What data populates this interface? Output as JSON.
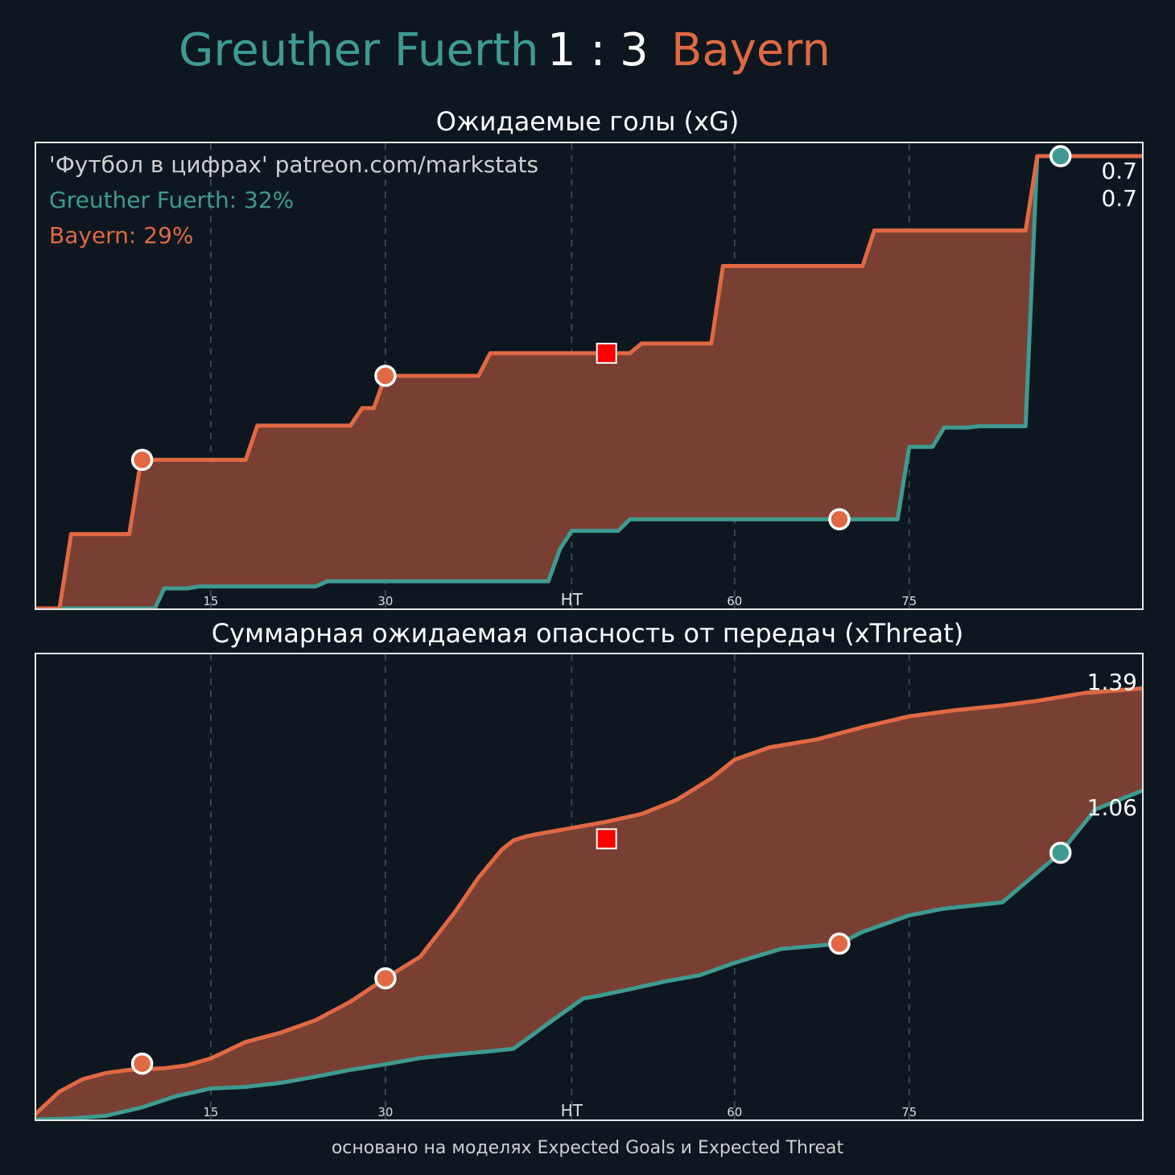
{
  "header": {
    "home_team": "Greuther Fuerth",
    "score": "1 : 3",
    "away_team": "Bayern",
    "home_color": "#3f9b91",
    "away_color": "#e06943"
  },
  "footer": "основано на моделях Expected Goals и Expected Threat",
  "chart_data": [
    {
      "type": "line",
      "title": "Ожидаемые голы (xG)",
      "watermark": "'Футбол в цифрах' patreon.com/markstats",
      "stats": [
        "Greuther Fuerth: 32%",
        "Bayern: 29%"
      ],
      "xlim": [
        0,
        95
      ],
      "ylim": [
        0,
        0.72
      ],
      "xticks": [
        {
          "value": 15,
          "label": "15"
        },
        {
          "value": 30,
          "label": "30"
        },
        {
          "value": 46,
          "label": "HT"
        },
        {
          "value": 60,
          "label": "60"
        },
        {
          "value": 75,
          "label": "75"
        }
      ],
      "grid_x": true,
      "end_labels": [
        "0.7",
        "0.7"
      ],
      "series": [
        {
          "name": "Greuther Fuerth",
          "color": "#3f9b91",
          "x": [
            0,
            10.2,
            11,
            13,
            14,
            24,
            25,
            44,
            45,
            46,
            50,
            51,
            74,
            75,
            77,
            78,
            80,
            81,
            85,
            86,
            95
          ],
          "y": [
            0,
            0,
            0.031,
            0.031,
            0.034,
            0.034,
            0.042,
            0.042,
            0.092,
            0.12,
            0.12,
            0.138,
            0.138,
            0.25,
            0.25,
            0.28,
            0.28,
            0.282,
            0.282,
            0.7,
            0.7
          ]
        },
        {
          "name": "Bayern",
          "color": "#e06943",
          "x": [
            0,
            2,
            3,
            8,
            9,
            9.1,
            18,
            19,
            27,
            28,
            28.5,
            29,
            30,
            38,
            39,
            51,
            52,
            58,
            59,
            71,
            72,
            85,
            86,
            95
          ],
          "y": [
            0,
            0,
            0.115,
            0.115,
            0.23,
            0.23,
            0.23,
            0.283,
            0.283,
            0.31,
            0.31,
            0.31,
            0.36,
            0.36,
            0.395,
            0.395,
            0.41,
            0.41,
            0.53,
            0.53,
            0.585,
            0.585,
            0.7,
            0.7
          ]
        }
      ],
      "markers": [
        {
          "x": 9.1,
          "y": 0.23,
          "kind": "circle",
          "color": "#e06943"
        },
        {
          "x": 30,
          "y": 0.36,
          "kind": "circle",
          "color": "#e06943"
        },
        {
          "x": 49,
          "y": 0.395,
          "kind": "square",
          "color": "#ff0000"
        },
        {
          "x": 69,
          "y": 0.138,
          "kind": "circle",
          "color": "#e06943"
        },
        {
          "x": 88,
          "y": 0.7,
          "kind": "circle",
          "color": "#3f9b91"
        }
      ]
    },
    {
      "type": "line",
      "title": "Суммарная ожидаемая опасность от передач (xThreat)",
      "xlim": [
        0,
        95
      ],
      "ylim": [
        0,
        1.5
      ],
      "xticks": [
        {
          "value": 15,
          "label": "15"
        },
        {
          "value": 30,
          "label": "30"
        },
        {
          "value": 46,
          "label": "HT"
        },
        {
          "value": 60,
          "label": "60"
        },
        {
          "value": 75,
          "label": "75"
        }
      ],
      "grid_x": true,
      "end_labels": [
        "1.39",
        "1.06"
      ],
      "series": [
        {
          "name": "Greuther Fuerth",
          "color": "#3f9b91",
          "x": [
            0,
            3,
            6,
            9,
            12,
            15,
            18,
            21,
            24,
            27,
            30,
            33,
            36,
            39,
            41,
            44,
            47,
            48.5,
            51,
            54,
            57,
            60,
            64,
            67,
            69,
            71,
            75,
            78,
            83,
            88,
            91,
            95
          ],
          "y": [
            0,
            0.003,
            0.012,
            0.038,
            0.075,
            0.1,
            0.105,
            0.118,
            0.138,
            0.16,
            0.178,
            0.198,
            0.21,
            0.22,
            0.228,
            0.31,
            0.39,
            0.4,
            0.42,
            0.445,
            0.465,
            0.505,
            0.55,
            0.56,
            0.567,
            0.605,
            0.658,
            0.68,
            0.7,
            0.86,
            1.0,
            1.06
          ]
        },
        {
          "name": "Bayern",
          "color": "#e06943",
          "x": [
            0,
            2,
            4,
            6,
            8,
            9.1,
            11,
            13,
            15,
            18,
            21,
            24,
            27,
            30,
            33,
            36,
            38,
            40,
            41,
            42,
            43,
            46,
            49,
            52,
            55,
            58,
            60,
            63,
            67,
            71,
            75,
            79,
            83,
            86,
            90,
            95
          ],
          "y": [
            0.02,
            0.09,
            0.13,
            0.15,
            0.16,
            0.162,
            0.165,
            0.175,
            0.197,
            0.25,
            0.28,
            0.32,
            0.38,
            0.455,
            0.525,
            0.67,
            0.78,
            0.87,
            0.9,
            0.912,
            0.92,
            0.94,
            0.96,
            0.985,
            1.03,
            1.1,
            1.16,
            1.2,
            1.225,
            1.265,
            1.3,
            1.32,
            1.335,
            1.35,
            1.375,
            1.39
          ]
        }
      ],
      "markers": [
        {
          "x": 9.1,
          "y": 0.18,
          "kind": "circle",
          "color": "#e06943"
        },
        {
          "x": 30,
          "y": 0.455,
          "kind": "circle",
          "color": "#e06943"
        },
        {
          "x": 49,
          "y": 0.905,
          "kind": "square",
          "color": "#ff0000"
        },
        {
          "x": 69,
          "y": 0.567,
          "kind": "circle",
          "color": "#e06943"
        },
        {
          "x": 88,
          "y": 0.86,
          "kind": "circle",
          "color": "#3f9b91"
        }
      ]
    }
  ]
}
